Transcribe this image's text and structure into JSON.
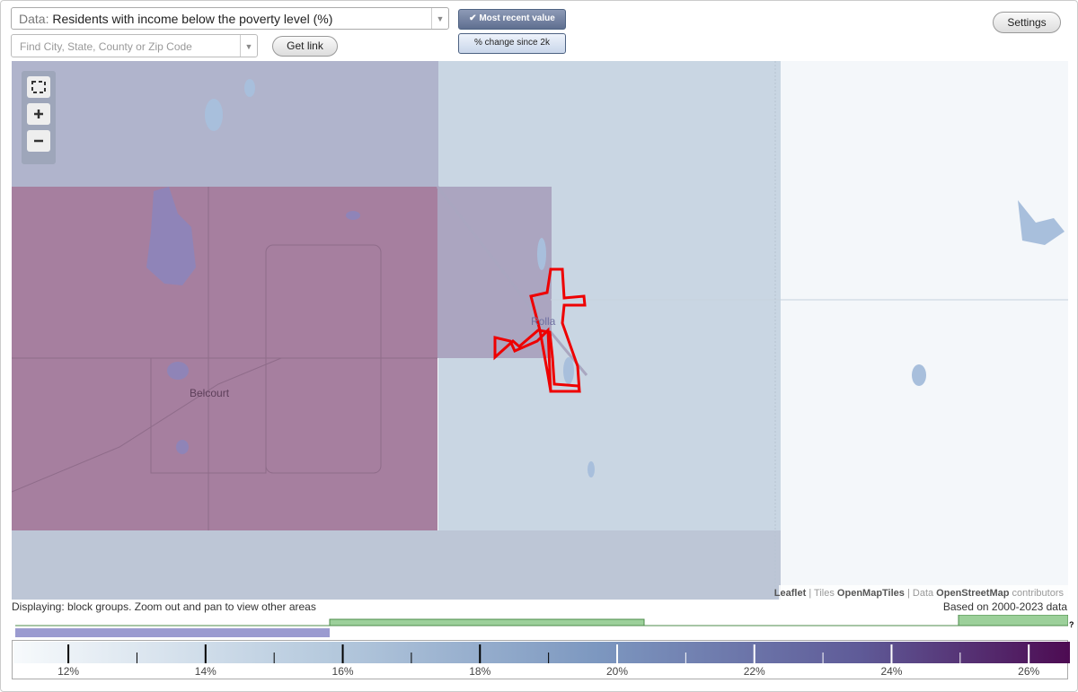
{
  "data_select": {
    "label": "Data:",
    "value": "Residents with income below the poverty level (%)"
  },
  "search": {
    "placeholder": "Find City, State, County or Zip Code"
  },
  "buttons": {
    "get_link": "Get link",
    "most_recent": "Most recent value",
    "change": "% change since 2k",
    "settings": "Settings"
  },
  "map": {
    "places": [
      "Rolla",
      "Belcourt"
    ],
    "attribution": [
      "Leaflet",
      " | Tiles ",
      "OpenMapTiles",
      " | Data ",
      "OpenStreetMap",
      " contributors"
    ]
  },
  "status": {
    "displaying": "Displaying: block groups. Zoom out and pan to view other areas",
    "based_on": "Based on 2000-2023 data",
    "help": "?"
  },
  "legend": {
    "range": [
      11.2,
      26.6
    ],
    "ticks": [
      {
        "value": 12,
        "label": "12%"
      },
      {
        "value": 14,
        "label": "14%"
      },
      {
        "value": 16,
        "label": "16%"
      },
      {
        "value": 18,
        "label": "18%"
      },
      {
        "value": 20,
        "label": "20%"
      },
      {
        "value": 22,
        "label": "22%"
      },
      {
        "value": 24,
        "label": "24%"
      },
      {
        "value": 26,
        "label": "26%"
      }
    ],
    "minor_ticks": [
      13,
      15,
      17,
      19,
      21,
      23,
      25
    ]
  }
}
